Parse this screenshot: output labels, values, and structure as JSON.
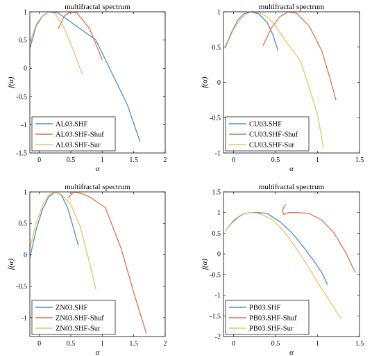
{
  "chart_data": [
    {
      "type": "line",
      "title": "multifractal spectrum",
      "xlabel": "α",
      "ylabel": "f(α)",
      "xlim": [
        -0.15,
        2.0
      ],
      "ylim": [
        -1.5,
        1.0
      ],
      "xticks": [
        0,
        0.5,
        1,
        1.5,
        2
      ],
      "yticks": [
        -1.5,
        -1,
        -0.5,
        0,
        0.5,
        1
      ],
      "xtick_labels": [
        "0",
        "0.5",
        "1",
        "1.5",
        "2"
      ],
      "ytick_labels": [
        "-1.5",
        "-1",
        "-0.5",
        "0",
        "0.5",
        "1"
      ],
      "legend_position": "bottom-left",
      "series": [
        {
          "name": "AL03.SHF",
          "color": "#4a90c8",
          "x": [
            -0.15,
            -0.05,
            0.05,
            0.15,
            0.3,
            0.5,
            0.9,
            1.4,
            1.6
          ],
          "y": [
            0.35,
            0.75,
            0.92,
            1.0,
            0.98,
            0.82,
            0.5,
            -0.65,
            -1.3
          ]
        },
        {
          "name": "AL03.SHF-Shuf",
          "color": "#e0704a",
          "x": [
            0.3,
            0.4,
            0.5,
            0.6,
            0.8,
            1.0
          ],
          "y": [
            0.7,
            0.93,
            1.0,
            0.98,
            0.7,
            0.15
          ]
        },
        {
          "name": "AL03.SHF-Sur",
          "color": "#f0c060",
          "x": [
            -0.15,
            -0.05,
            0.05,
            0.15,
            0.25,
            0.4,
            0.55,
            0.68
          ],
          "y": [
            0.45,
            0.78,
            0.93,
            1.0,
            0.97,
            0.7,
            0.3,
            -0.1
          ]
        }
      ]
    },
    {
      "type": "line",
      "title": "multifractal spectrum",
      "xlabel": "α",
      "ylabel": "f(α)",
      "xlim": [
        -0.12,
        1.5
      ],
      "ylim": [
        -1.0,
        1.0
      ],
      "xticks": [
        0,
        0.5,
        1,
        1.5
      ],
      "yticks": [
        -1,
        -0.5,
        0,
        0.5,
        1
      ],
      "xtick_labels": [
        "0",
        "0.5",
        "1",
        "1.5"
      ],
      "ytick_labels": [
        "-1",
        "-0.5",
        "0",
        "0.5",
        "1"
      ],
      "legend_position": "bottom-left",
      "series": [
        {
          "name": "CU03.SHF",
          "color": "#4a90c8",
          "x": [
            -0.1,
            -0.02,
            0.05,
            0.12,
            0.2,
            0.3,
            0.4,
            0.47,
            0.53
          ],
          "y": [
            0.5,
            0.72,
            0.88,
            0.97,
            1.0,
            0.97,
            0.85,
            0.67,
            0.45
          ]
        },
        {
          "name": "CU03.SHF-Shuf",
          "color": "#e0704a",
          "x": [
            0.35,
            0.45,
            0.55,
            0.65,
            0.75,
            0.9,
            1.05,
            1.15,
            1.22
          ],
          "y": [
            0.52,
            0.77,
            0.93,
            1.0,
            0.98,
            0.8,
            0.45,
            0.05,
            -0.25
          ]
        },
        {
          "name": "CU03.SHF-Sur",
          "color": "#f0c060",
          "x": [
            -0.1,
            0.0,
            0.1,
            0.2,
            0.3,
            0.4,
            0.5,
            0.6,
            0.8,
            1.0,
            1.07
          ],
          "y": [
            0.48,
            0.75,
            0.92,
            1.0,
            0.99,
            0.93,
            0.8,
            0.62,
            0.3,
            -0.45,
            -0.93
          ]
        }
      ]
    },
    {
      "type": "line",
      "title": "multifractal spectrum",
      "xlabel": "α",
      "ylabel": "f(α)",
      "xlim": [
        -0.15,
        2.0
      ],
      "ylim": [
        -1.3,
        1.0
      ],
      "xticks": [
        0,
        0.5,
        1,
        1.5,
        2
      ],
      "yticks": [
        -1,
        -0.5,
        0,
        0.5,
        1
      ],
      "xtick_labels": [
        "0",
        "0.5",
        "1",
        "1.5",
        "2"
      ],
      "ytick_labels": [
        "-1",
        "-0.5",
        "0",
        "0.5",
        "1"
      ],
      "legend_position": "bottom-left",
      "series": [
        {
          "name": "ZN03.SHF",
          "color": "#4a90c8",
          "x": [
            -0.15,
            -0.05,
            0.05,
            0.15,
            0.25,
            0.35,
            0.45,
            0.55,
            0.62
          ],
          "y": [
            -0.05,
            0.4,
            0.72,
            0.92,
            1.0,
            0.95,
            0.75,
            0.4,
            0.15
          ]
        },
        {
          "name": "ZN03.SHF-Shuf",
          "color": "#e0704a",
          "x": [
            0.45,
            0.55,
            0.65,
            0.8,
            1.05,
            1.3,
            1.5,
            1.7
          ],
          "y": [
            0.9,
            1.0,
            0.98,
            0.92,
            0.75,
            0.1,
            -0.6,
            -1.25
          ]
        },
        {
          "name": "ZN03.SHF-Sur",
          "color": "#f0c060",
          "x": [
            -0.15,
            -0.05,
            0.05,
            0.15,
            0.25,
            0.35,
            0.5,
            0.65,
            0.78,
            0.9
          ],
          "y": [
            0.1,
            0.5,
            0.78,
            0.95,
            1.0,
            0.96,
            0.8,
            0.45,
            -0.05,
            -0.55
          ]
        }
      ]
    },
    {
      "type": "line",
      "title": "multifractal spectrum",
      "xlabel": "α",
      "ylabel": "f(α)",
      "xlim": [
        -0.12,
        1.5
      ],
      "ylim": [
        -2.0,
        1.5
      ],
      "xticks": [
        0,
        0.5,
        1,
        1.5
      ],
      "yticks": [
        -2,
        -1.5,
        -1,
        -0.5,
        0,
        0.5,
        1,
        1.5
      ],
      "xtick_labels": [
        "0",
        "0.5",
        "1",
        "1.5"
      ],
      "ytick_labels": [
        "-2",
        "-1.5",
        "-1",
        "-0.5",
        "0",
        "0.5",
        "1",
        "1.5"
      ],
      "legend_position": "bottom-left",
      "series": [
        {
          "name": "PB03.SHF",
          "color": "#4a90c8",
          "x": [
            -0.1,
            -0.02,
            0.05,
            0.12,
            0.2,
            0.3,
            0.4,
            0.55,
            0.7,
            0.82,
            0.95,
            1.05,
            1.12
          ],
          "y": [
            0.55,
            0.75,
            0.88,
            0.97,
            1.0,
            1.0,
            0.98,
            0.78,
            0.5,
            0.2,
            -0.15,
            -0.45,
            -0.75
          ]
        },
        {
          "name": "PB03.SHF-Shuf",
          "color": "#e0704a",
          "x": [
            0.62,
            0.58,
            0.6,
            0.65,
            0.75,
            0.9,
            1.05,
            1.2,
            1.33,
            1.45
          ],
          "y": [
            1.2,
            1.05,
            0.95,
            1.0,
            1.0,
            0.98,
            0.82,
            0.5,
            0.05,
            -0.45
          ]
        },
        {
          "name": "PB03.SHF-Sur",
          "color": "#f0c060",
          "x": [
            -0.1,
            0.0,
            0.1,
            0.2,
            0.3,
            0.45,
            0.6,
            0.75,
            0.9,
            1.05,
            1.18,
            1.28
          ],
          "y": [
            0.55,
            0.82,
            0.96,
            1.0,
            0.98,
            0.85,
            0.55,
            0.12,
            -0.35,
            -0.85,
            -1.25,
            -1.58
          ]
        }
      ]
    }
  ]
}
